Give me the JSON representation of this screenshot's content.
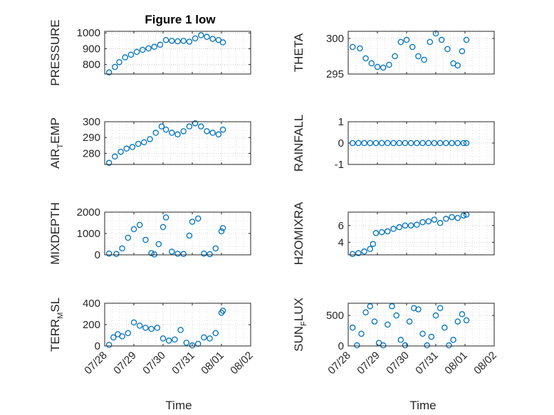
{
  "figure": {
    "title": "Figure 1 low",
    "xlabel": "Time"
  },
  "colors": {
    "marker": "#0072BD",
    "axis": "#262626",
    "grid": "#c8c8c8",
    "background": "#ffffff"
  },
  "chart_data": [
    {
      "id": "pressure",
      "type": "scatter",
      "ylabel": "PRESSURE",
      "ylabel_main": "PRESSURE",
      "ylabel_sub": "",
      "ylabel_tail": "",
      "ylim": [
        740,
        1010
      ],
      "yticks": [
        800,
        900,
        1000
      ],
      "xlim": [
        0,
        5
      ],
      "xticks": [
        0,
        1,
        2,
        3,
        4,
        5
      ],
      "xticklabels": [
        "07/28",
        "07/29",
        "07/30",
        "07/31",
        "08/01",
        "08/02"
      ],
      "grid": true,
      "show_xticklabels": false,
      "series": [
        {
          "x": [
            0.15,
            0.35,
            0.5,
            0.7,
            0.9,
            1.1,
            1.3,
            1.5,
            1.7,
            1.9,
            2.1,
            2.3,
            2.5,
            2.7,
            2.9,
            3.1,
            3.3,
            3.5,
            3.7,
            3.9,
            4.05
          ],
          "y": [
            750,
            785,
            815,
            845,
            862,
            880,
            893,
            902,
            912,
            925,
            955,
            950,
            947,
            950,
            945,
            965,
            985,
            975,
            962,
            955,
            940
          ]
        }
      ]
    },
    {
      "id": "theta",
      "type": "scatter",
      "ylabel": "THETA",
      "ylabel_main": "THETA",
      "ylabel_sub": "",
      "ylabel_tail": "",
      "ylim": [
        295,
        301
      ],
      "yticks": [
        295,
        300
      ],
      "xlim": [
        0,
        5
      ],
      "xticks": [
        0,
        1,
        2,
        3,
        4,
        5
      ],
      "xticklabels": [
        "07/28",
        "07/29",
        "07/30",
        "07/31",
        "08/01",
        "08/02"
      ],
      "grid": true,
      "show_xticklabels": false,
      "series": [
        {
          "x": [
            0.15,
            0.4,
            0.6,
            0.8,
            1.0,
            1.2,
            1.4,
            1.6,
            1.8,
            2.0,
            2.2,
            2.4,
            2.6,
            2.8,
            3.0,
            3.2,
            3.4,
            3.6,
            3.75,
            3.9,
            4.05
          ],
          "y": [
            298.8,
            298.6,
            297.2,
            296.5,
            296.0,
            295.9,
            296.3,
            297.5,
            299.5,
            299.8,
            298.8,
            297.5,
            297.0,
            299.5,
            300.7,
            299.8,
            298.5,
            296.5,
            296.2,
            298.2,
            299.8
          ]
        }
      ]
    },
    {
      "id": "air_temp",
      "type": "scatter",
      "ylabel": "AIR_TEMP",
      "ylabel_main": "AIR",
      "ylabel_sub": "T",
      "ylabel_tail": "EMP",
      "ylim": [
        273,
        300
      ],
      "yticks": [
        280,
        290,
        300
      ],
      "xlim": [
        0,
        5
      ],
      "xticks": [
        0,
        1,
        2,
        3,
        4,
        5
      ],
      "xticklabels": [
        "07/28",
        "07/29",
        "07/30",
        "07/31",
        "08/01",
        "08/02"
      ],
      "grid": true,
      "show_xticklabels": false,
      "series": [
        {
          "x": [
            0.15,
            0.35,
            0.55,
            0.75,
            0.95,
            1.15,
            1.35,
            1.55,
            1.75,
            1.95,
            2.1,
            2.3,
            2.5,
            2.7,
            2.9,
            3.1,
            3.3,
            3.5,
            3.7,
            3.9,
            4.05
          ],
          "y": [
            274,
            278,
            281,
            283,
            284,
            286,
            287,
            289,
            293,
            297,
            295,
            293,
            292,
            294,
            297,
            299,
            297,
            294,
            293,
            292,
            295
          ]
        }
      ]
    },
    {
      "id": "rainfall",
      "type": "scatter",
      "ylabel": "RAINFALL",
      "ylabel_main": "RAINFALL",
      "ylabel_sub": "",
      "ylabel_tail": "",
      "ylim": [
        -1,
        1
      ],
      "yticks": [
        -1,
        0,
        1
      ],
      "xlim": [
        0,
        5
      ],
      "xticks": [
        0,
        1,
        2,
        3,
        4,
        5
      ],
      "xticklabels": [
        "07/28",
        "07/29",
        "07/30",
        "07/31",
        "08/01",
        "08/02"
      ],
      "grid": true,
      "show_xticklabels": false,
      "series": [
        {
          "x": [
            0.15,
            0.35,
            0.55,
            0.75,
            0.95,
            1.15,
            1.35,
            1.55,
            1.75,
            1.95,
            2.15,
            2.35,
            2.55,
            2.75,
            2.95,
            3.15,
            3.35,
            3.55,
            3.75,
            3.95,
            4.05
          ],
          "y": [
            0,
            0,
            0,
            0,
            0,
            0,
            0,
            0,
            0,
            0,
            0,
            0,
            0,
            0,
            0,
            0,
            0,
            0,
            0,
            0,
            0
          ]
        }
      ]
    },
    {
      "id": "mixdepth",
      "type": "scatter",
      "ylabel": "MIXDEPTH",
      "ylabel_main": "MIXDEPTH",
      "ylabel_sub": "",
      "ylabel_tail": "",
      "ylim": [
        0,
        2000
      ],
      "yticks": [
        0,
        1000,
        2000
      ],
      "xlim": [
        0,
        5
      ],
      "xticks": [
        0,
        1,
        2,
        3,
        4,
        5
      ],
      "xticklabels": [
        "07/28",
        "07/29",
        "07/30",
        "07/31",
        "08/01",
        "08/02"
      ],
      "grid": true,
      "show_xticklabels": false,
      "series": [
        {
          "x": [
            0.15,
            0.4,
            0.6,
            0.8,
            1.0,
            1.2,
            1.4,
            1.6,
            1.7,
            1.85,
            2.0,
            2.1,
            2.3,
            2.5,
            2.7,
            2.9,
            3.0,
            3.2,
            3.4,
            3.6,
            3.8,
            4.0,
            4.05
          ],
          "y": [
            60,
            40,
            300,
            800,
            1200,
            1400,
            700,
            80,
            20,
            500,
            1300,
            1750,
            150,
            50,
            40,
            900,
            1550,
            1700,
            60,
            30,
            300,
            1100,
            1250
          ]
        }
      ]
    },
    {
      "id": "h2omixra",
      "type": "scatter",
      "ylabel": "H2OMIXRA",
      "ylabel_main": "H2OMIXRA",
      "ylabel_sub": "",
      "ylabel_tail": "",
      "ylim": [
        2.5,
        7.6
      ],
      "yticks": [
        4,
        6
      ],
      "xlim": [
        0,
        5
      ],
      "xticks": [
        0,
        1,
        2,
        3,
        4,
        5
      ],
      "xticklabels": [
        "07/28",
        "07/29",
        "07/30",
        "07/31",
        "08/01",
        "08/02"
      ],
      "grid": true,
      "show_xticklabels": false,
      "series": [
        {
          "x": [
            0.15,
            0.35,
            0.55,
            0.75,
            0.85,
            0.95,
            1.15,
            1.35,
            1.55,
            1.75,
            1.95,
            2.15,
            2.35,
            2.55,
            2.75,
            2.95,
            3.15,
            3.35,
            3.55,
            3.75,
            3.95,
            4.05
          ],
          "y": [
            2.6,
            2.7,
            2.9,
            3.2,
            3.8,
            5.1,
            5.2,
            5.3,
            5.6,
            5.8,
            6.0,
            6.0,
            6.1,
            6.4,
            6.5,
            6.7,
            6.3,
            6.8,
            7.0,
            6.9,
            7.2,
            7.3
          ]
        }
      ]
    },
    {
      "id": "terr_msl",
      "type": "scatter",
      "ylabel": "TERR_MSL",
      "ylabel_main": "TERR",
      "ylabel_sub": "M",
      "ylabel_tail": "SL",
      "ylim": [
        0,
        400
      ],
      "yticks": [
        0,
        200,
        400
      ],
      "xlim": [
        0,
        5
      ],
      "xticks": [
        0,
        1,
        2,
        3,
        4,
        5
      ],
      "xticklabels": [
        "07/28",
        "07/29",
        "07/30",
        "07/31",
        "08/01",
        "08/02"
      ],
      "grid": true,
      "show_xticklabels": true,
      "series": [
        {
          "x": [
            0.15,
            0.3,
            0.45,
            0.6,
            0.8,
            1.0,
            1.2,
            1.4,
            1.6,
            1.8,
            2.0,
            2.2,
            2.4,
            2.6,
            2.8,
            3.0,
            3.2,
            3.4,
            3.6,
            3.8,
            4.0,
            4.05
          ],
          "y": [
            10,
            80,
            110,
            90,
            120,
            220,
            190,
            170,
            160,
            170,
            70,
            50,
            60,
            150,
            30,
            5,
            20,
            80,
            70,
            120,
            310,
            330
          ]
        }
      ]
    },
    {
      "id": "sun_flux",
      "type": "scatter",
      "ylabel": "SUN_FLUX",
      "ylabel_main": "SUN",
      "ylabel_sub": "F",
      "ylabel_tail": "LUX",
      "ylim": [
        0,
        700
      ],
      "yticks": [
        0,
        500
      ],
      "xlim": [
        0,
        5
      ],
      "xticks": [
        0,
        1,
        2,
        3,
        4,
        5
      ],
      "xticklabels": [
        "07/28",
        "07/29",
        "07/30",
        "07/31",
        "08/01",
        "08/02"
      ],
      "grid": true,
      "show_xticklabels": true,
      "series": [
        {
          "x": [
            0.15,
            0.3,
            0.45,
            0.6,
            0.75,
            0.9,
            1.05,
            1.2,
            1.35,
            1.5,
            1.65,
            1.8,
            1.95,
            2.1,
            2.25,
            2.4,
            2.55,
            2.7,
            2.85,
            3.0,
            3.15,
            3.3,
            3.45,
            3.6,
            3.75,
            3.9,
            4.05
          ],
          "y": [
            300,
            10,
            200,
            550,
            650,
            400,
            50,
            10,
            350,
            650,
            500,
            100,
            10,
            400,
            620,
            600,
            200,
            10,
            150,
            500,
            620,
            300,
            10,
            100,
            400,
            520,
            420
          ]
        }
      ]
    }
  ]
}
